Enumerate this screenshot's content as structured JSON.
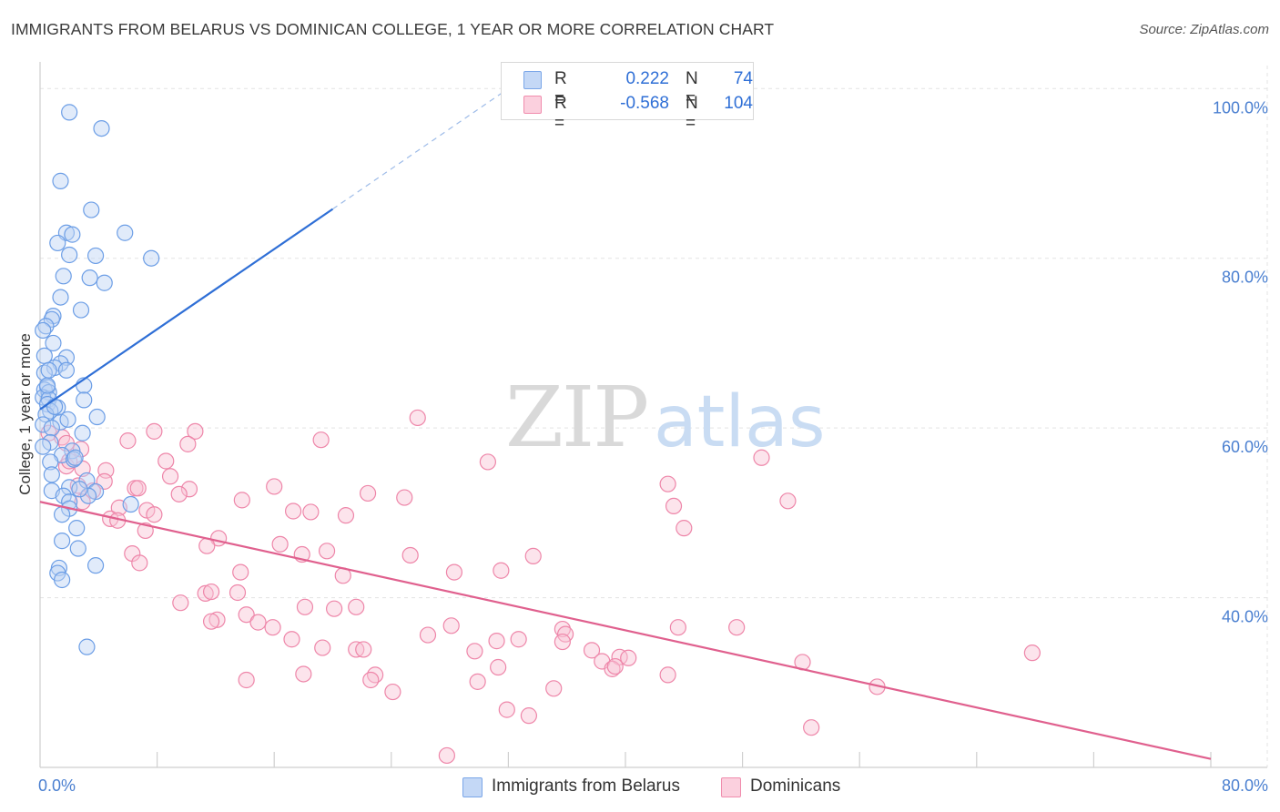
{
  "title": "IMMIGRANTS FROM BELARUS VS DOMINICAN COLLEGE, 1 YEAR OR MORE CORRELATION CHART",
  "source": "Source: ZipAtlas.com",
  "watermark": {
    "zip": "ZIP",
    "atlas": "atlas"
  },
  "legend": {
    "rows": [
      {
        "r_label": "R =",
        "r_value": "0.222",
        "n_label": "N =",
        "n_value": "74",
        "color": "#7aa6e8",
        "fill": "#c4d8f6"
      },
      {
        "r_label": "R =",
        "r_value": "-0.568",
        "n_label": "N =",
        "n_value": "104",
        "color": "#f08cad",
        "fill": "#fbd0de"
      }
    ]
  },
  "colors": {
    "blue": "#6c9ee6",
    "blue_line": "#2f6fd6",
    "pink": "#ee86a9",
    "pink_line": "#e0608e",
    "tick": "#4a7fd0"
  },
  "chart_data": {
    "type": "scatter",
    "title": "IMMIGRANTS FROM BELARUS VS DOMINICAN COLLEGE, 1 YEAR OR MORE CORRELATION CHART",
    "xlabel": "",
    "ylabel": "College, 1 year or more",
    "xlim": [
      0,
      80
    ],
    "ylim": [
      20,
      104
    ],
    "x_ticks": [
      {
        "value": 0,
        "label": "0.0%"
      },
      {
        "value": 80,
        "label": "80.0%"
      }
    ],
    "y_ticks": [
      {
        "value": 100,
        "label": "100.0%"
      },
      {
        "value": 80,
        "label": "80.0%"
      },
      {
        "value": 60,
        "label": "60.0%"
      },
      {
        "value": 40,
        "label": "40.0%"
      }
    ],
    "grid": "horizontal dashed",
    "legend_position": "top-center",
    "series": [
      {
        "name": "Immigrants from Belarus",
        "r": 0.222,
        "n": 74,
        "trend": {
          "x": [
            0,
            20
          ],
          "y": [
            62.2,
            85.8
          ]
        },
        "trend_extension": {
          "x": [
            20,
            32
          ],
          "y": [
            85.8,
            100
          ]
        },
        "points": [
          [
            2.0,
            97.2
          ],
          [
            4.2,
            95.3
          ],
          [
            1.4,
            89.1
          ],
          [
            3.5,
            85.7
          ],
          [
            1.8,
            83.0
          ],
          [
            2.2,
            82.8
          ],
          [
            5.8,
            83.0
          ],
          [
            1.2,
            81.8
          ],
          [
            2.0,
            80.4
          ],
          [
            3.8,
            80.3
          ],
          [
            7.6,
            80.0
          ],
          [
            1.6,
            77.9
          ],
          [
            3.4,
            77.7
          ],
          [
            4.4,
            77.1
          ],
          [
            1.4,
            75.4
          ],
          [
            2.8,
            73.9
          ],
          [
            0.9,
            73.2
          ],
          [
            0.8,
            72.8
          ],
          [
            0.4,
            72.0
          ],
          [
            0.2,
            71.5
          ],
          [
            0.9,
            70.0
          ],
          [
            0.3,
            68.5
          ],
          [
            1.8,
            68.3
          ],
          [
            1.4,
            67.6
          ],
          [
            1.0,
            67.1
          ],
          [
            1.8,
            66.8
          ],
          [
            0.3,
            66.5
          ],
          [
            3.0,
            65.0
          ],
          [
            0.5,
            64.8
          ],
          [
            0.3,
            64.5
          ],
          [
            0.6,
            64.2
          ],
          [
            0.2,
            63.6
          ],
          [
            0.6,
            63.4
          ],
          [
            3.0,
            63.3
          ],
          [
            0.5,
            62.8
          ],
          [
            1.2,
            62.4
          ],
          [
            0.7,
            62.0
          ],
          [
            0.4,
            61.6
          ],
          [
            3.9,
            61.3
          ],
          [
            1.4,
            60.7
          ],
          [
            0.2,
            60.4
          ],
          [
            0.8,
            60.0
          ],
          [
            2.9,
            59.4
          ],
          [
            0.7,
            58.3
          ],
          [
            0.2,
            57.8
          ],
          [
            2.2,
            57.3
          ],
          [
            1.5,
            56.8
          ],
          [
            2.3,
            56.3
          ],
          [
            0.7,
            56.0
          ],
          [
            0.8,
            54.5
          ],
          [
            3.2,
            53.8
          ],
          [
            2.0,
            53.0
          ],
          [
            0.8,
            52.6
          ],
          [
            3.8,
            52.5
          ],
          [
            1.6,
            52.0
          ],
          [
            3.3,
            52.0
          ],
          [
            2.0,
            51.3
          ],
          [
            6.2,
            51.0
          ],
          [
            2.0,
            50.5
          ],
          [
            1.5,
            49.8
          ],
          [
            2.5,
            48.2
          ],
          [
            1.5,
            46.7
          ],
          [
            2.6,
            45.8
          ],
          [
            3.8,
            43.8
          ],
          [
            1.3,
            43.5
          ],
          [
            1.2,
            42.9
          ],
          [
            1.5,
            42.1
          ],
          [
            3.2,
            34.2
          ],
          [
            0.5,
            65.0
          ],
          [
            1.0,
            62.5
          ],
          [
            2.4,
            56.5
          ],
          [
            0.6,
            66.8
          ],
          [
            1.9,
            61.0
          ],
          [
            2.7,
            52.8
          ]
        ]
      },
      {
        "name": "Dominicans",
        "r": -0.568,
        "n": 104,
        "trend": {
          "x": [
            0,
            80
          ],
          "y": [
            51.3,
            21.0
          ]
        },
        "points": [
          [
            25.8,
            61.2
          ],
          [
            7.8,
            59.6
          ],
          [
            10.6,
            59.6
          ],
          [
            0.6,
            59.4
          ],
          [
            1.5,
            58.9
          ],
          [
            6.0,
            58.5
          ],
          [
            19.2,
            58.6
          ],
          [
            1.8,
            58.2
          ],
          [
            2.8,
            57.5
          ],
          [
            8.6,
            56.1
          ],
          [
            30.6,
            56.0
          ],
          [
            49.3,
            56.5
          ],
          [
            1.8,
            55.5
          ],
          [
            2.9,
            55.2
          ],
          [
            4.5,
            55.0
          ],
          [
            8.9,
            54.3
          ],
          [
            4.4,
            53.7
          ],
          [
            2.6,
            53.2
          ],
          [
            16.0,
            53.1
          ],
          [
            42.9,
            53.4
          ],
          [
            6.5,
            52.9
          ],
          [
            10.2,
            52.8
          ],
          [
            3.6,
            52.6
          ],
          [
            9.5,
            52.2
          ],
          [
            22.4,
            52.3
          ],
          [
            24.9,
            51.8
          ],
          [
            13.8,
            51.5
          ],
          [
            51.1,
            51.4
          ],
          [
            2.9,
            51.3
          ],
          [
            43.3,
            50.8
          ],
          [
            5.4,
            50.6
          ],
          [
            7.3,
            50.3
          ],
          [
            17.3,
            50.2
          ],
          [
            18.5,
            50.1
          ],
          [
            20.9,
            49.7
          ],
          [
            7.8,
            49.8
          ],
          [
            4.8,
            49.3
          ],
          [
            5.3,
            49.1
          ],
          [
            7.2,
            47.9
          ],
          [
            12.2,
            47.0
          ],
          [
            16.4,
            46.3
          ],
          [
            11.4,
            46.1
          ],
          [
            6.3,
            45.2
          ],
          [
            17.9,
            45.1
          ],
          [
            19.6,
            45.5
          ],
          [
            25.3,
            45.0
          ],
          [
            33.7,
            44.9
          ],
          [
            6.8,
            44.1
          ],
          [
            13.7,
            43.0
          ],
          [
            28.3,
            43.0
          ],
          [
            31.5,
            43.2
          ],
          [
            20.7,
            42.6
          ],
          [
            11.3,
            40.5
          ],
          [
            11.7,
            40.7
          ],
          [
            13.5,
            40.6
          ],
          [
            9.6,
            39.4
          ],
          [
            18.1,
            38.9
          ],
          [
            20.1,
            38.7
          ],
          [
            21.6,
            38.9
          ],
          [
            14.1,
            38.0
          ],
          [
            12.1,
            37.4
          ],
          [
            11.7,
            37.2
          ],
          [
            14.9,
            37.1
          ],
          [
            15.9,
            36.5
          ],
          [
            28.1,
            36.7
          ],
          [
            35.7,
            36.3
          ],
          [
            43.6,
            36.5
          ],
          [
            47.6,
            36.5
          ],
          [
            26.5,
            35.6
          ],
          [
            35.9,
            35.7
          ],
          [
            17.2,
            35.1
          ],
          [
            31.2,
            34.9
          ],
          [
            32.7,
            35.1
          ],
          [
            19.3,
            34.1
          ],
          [
            21.6,
            33.9
          ],
          [
            22.1,
            33.9
          ],
          [
            29.7,
            33.7
          ],
          [
            37.7,
            33.8
          ],
          [
            39.6,
            33.0
          ],
          [
            40.2,
            32.9
          ],
          [
            38.4,
            32.5
          ],
          [
            52.1,
            32.4
          ],
          [
            67.8,
            33.5
          ],
          [
            31.3,
            31.8
          ],
          [
            39.1,
            31.6
          ],
          [
            39.3,
            31.9
          ],
          [
            42.9,
            30.9
          ],
          [
            18.0,
            31.0
          ],
          [
            14.1,
            30.3
          ],
          [
            22.9,
            30.9
          ],
          [
            29.9,
            30.1
          ],
          [
            22.6,
            30.3
          ],
          [
            35.1,
            29.3
          ],
          [
            57.2,
            29.5
          ],
          [
            24.1,
            28.9
          ],
          [
            31.9,
            26.8
          ],
          [
            33.4,
            26.1
          ],
          [
            52.7,
            24.7
          ],
          [
            27.8,
            21.4
          ],
          [
            44.0,
            48.2
          ],
          [
            35.7,
            34.8
          ],
          [
            10.1,
            58.1
          ],
          [
            6.7,
            52.9
          ],
          [
            2.0,
            56.1
          ]
        ]
      }
    ]
  }
}
